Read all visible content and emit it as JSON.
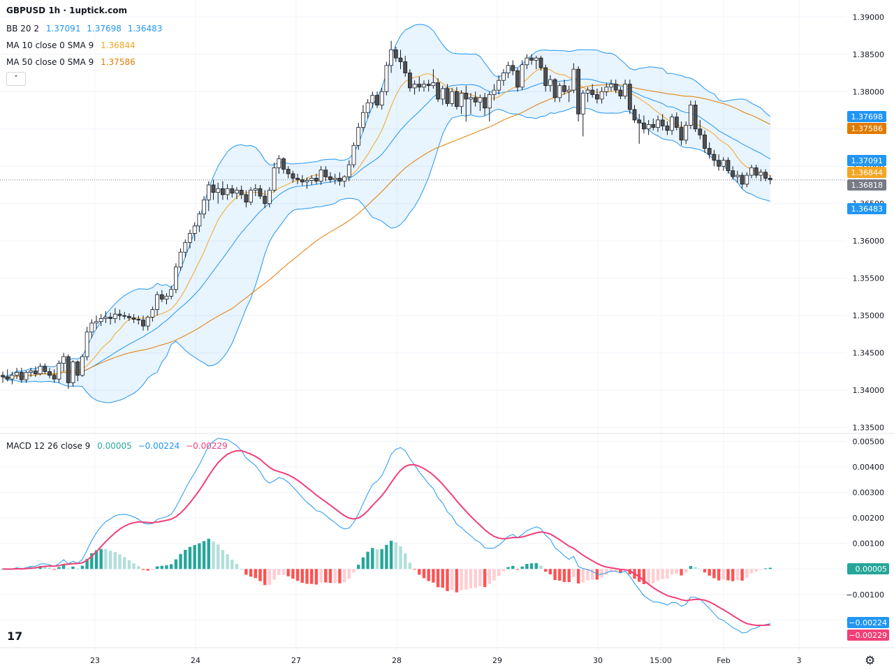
{
  "title": "GBPUSD 1h · 1uptick.com",
  "legend": {
    "bb": {
      "name": "BB 20 2",
      "values": [
        "1.37091",
        "1.37698",
        "1.36483"
      ],
      "color": "#2196f3"
    },
    "ma10": {
      "name": "MA 10 close 0 SMA 9",
      "value": "1.36844",
      "color": "#f5a623"
    },
    "ma50": {
      "name": "MA 50 close 0 SMA 9",
      "value": "1.37586",
      "color": "#e07b00"
    },
    "macd": {
      "name": "MACD 12 26 close 9",
      "values": [
        "0.00005",
        "−0.00224",
        "−0.00229"
      ],
      "colors": [
        "#26a69a",
        "#2196f3",
        "#f23f77"
      ]
    }
  },
  "collapse_icon": "chevron-up-icon",
  "logo_text": "17",
  "settings_icon": "gear-icon",
  "chart_data": {
    "type": "candlestick",
    "symbol": "GBPUSD",
    "interval": "1h",
    "price_axis": {
      "ticks": [
        "1.33500",
        "1.34000",
        "1.34500",
        "1.35000",
        "1.35500",
        "1.36000",
        "1.36500",
        "1.37000",
        "1.37500",
        "1.38000",
        "1.38500",
        "1.39000"
      ],
      "range": [
        1.3345,
        1.3904
      ]
    },
    "x_axis": {
      "ticks": [
        "23",
        "24",
        "27",
        "28",
        "29",
        "30",
        "15:00",
        "Feb",
        "3"
      ]
    },
    "price_labels": [
      {
        "text": "1.37698",
        "value": 1.37698,
        "color": "#2196f3"
      },
      {
        "text": "1.37586",
        "value": 1.37586,
        "color": "#e07b00"
      },
      {
        "text": "1.37091",
        "value": 1.37091,
        "color": "#2196f3"
      },
      {
        "text": "1.36844",
        "value": 1.36844,
        "color": "#f5a623"
      },
      {
        "text": "1.36818",
        "value": 1.36818,
        "color": "#787b86"
      },
      {
        "text": "1.36483",
        "value": 1.36483,
        "color": "#2196f3"
      }
    ],
    "last_price": 1.36818,
    "candles": [
      [
        1.342,
        1.3425,
        1.341,
        1.3418
      ],
      [
        1.3418,
        1.3428,
        1.3412,
        1.3415
      ],
      [
        1.3415,
        1.3425,
        1.3408,
        1.342
      ],
      [
        1.342,
        1.343,
        1.3415,
        1.3424
      ],
      [
        1.3424,
        1.343,
        1.341,
        1.3414
      ],
      [
        1.3414,
        1.3426,
        1.341,
        1.3424
      ],
      [
        1.3424,
        1.343,
        1.3418,
        1.3426
      ],
      [
        1.3426,
        1.3432,
        1.3418,
        1.3422
      ],
      [
        1.3422,
        1.3436,
        1.342,
        1.3432
      ],
      [
        1.3432,
        1.3436,
        1.3422,
        1.3425
      ],
      [
        1.3425,
        1.343,
        1.3416,
        1.342
      ],
      [
        1.342,
        1.3428,
        1.341,
        1.3415
      ],
      [
        1.3415,
        1.344,
        1.341,
        1.3436
      ],
      [
        1.3436,
        1.345,
        1.3425,
        1.3445
      ],
      [
        1.3445,
        1.3448,
        1.3402,
        1.341
      ],
      [
        1.341,
        1.344,
        1.3405,
        1.3438
      ],
      [
        1.3438,
        1.344,
        1.3412,
        1.342
      ],
      [
        1.342,
        1.3448,
        1.3418,
        1.3445
      ],
      [
        1.3445,
        1.3485,
        1.344,
        1.3478
      ],
      [
        1.3478,
        1.3495,
        1.347,
        1.349
      ],
      [
        1.349,
        1.35,
        1.3482,
        1.3492
      ],
      [
        1.3492,
        1.3502,
        1.3486,
        1.3496
      ],
      [
        1.3496,
        1.3506,
        1.349,
        1.3498
      ],
      [
        1.3498,
        1.3504,
        1.3488,
        1.3496
      ],
      [
        1.3496,
        1.351,
        1.349,
        1.3502
      ],
      [
        1.3502,
        1.3508,
        1.3494,
        1.35
      ],
      [
        1.35,
        1.3505,
        1.3495,
        1.3499
      ],
      [
        1.3499,
        1.3503,
        1.3493,
        1.3497
      ],
      [
        1.3497,
        1.3502,
        1.349,
        1.3495
      ],
      [
        1.3495,
        1.35,
        1.3488,
        1.3494
      ],
      [
        1.3494,
        1.35,
        1.348,
        1.3486
      ],
      [
        1.3486,
        1.35,
        1.348,
        1.3498
      ],
      [
        1.3498,
        1.3512,
        1.3492,
        1.3508
      ],
      [
        1.3508,
        1.3532,
        1.35,
        1.3528
      ],
      [
        1.3528,
        1.3534,
        1.3518,
        1.3522
      ],
      [
        1.3522,
        1.353,
        1.3515,
        1.3526
      ],
      [
        1.3526,
        1.354,
        1.3522,
        1.3535
      ],
      [
        1.3535,
        1.357,
        1.353,
        1.3565
      ],
      [
        1.3565,
        1.359,
        1.356,
        1.3585
      ],
      [
        1.3585,
        1.3602,
        1.3578,
        1.3598
      ],
      [
        1.3598,
        1.3615,
        1.359,
        1.361
      ],
      [
        1.361,
        1.3625,
        1.36,
        1.362
      ],
      [
        1.362,
        1.364,
        1.3612,
        1.3636
      ],
      [
        1.3636,
        1.366,
        1.363,
        1.3655
      ],
      [
        1.3655,
        1.368,
        1.364,
        1.3675
      ],
      [
        1.3675,
        1.3682,
        1.3655,
        1.3665
      ],
      [
        1.3665,
        1.3678,
        1.365,
        1.367
      ],
      [
        1.367,
        1.368,
        1.3655,
        1.3662
      ],
      [
        1.3662,
        1.3676,
        1.3655,
        1.367
      ],
      [
        1.367,
        1.3675,
        1.3658,
        1.3664
      ],
      [
        1.3664,
        1.3672,
        1.3656,
        1.3668
      ],
      [
        1.3668,
        1.3674,
        1.3656,
        1.3662
      ],
      [
        1.3662,
        1.3668,
        1.3645,
        1.3652
      ],
      [
        1.3652,
        1.3672,
        1.3648,
        1.3668
      ],
      [
        1.3668,
        1.3676,
        1.366,
        1.367
      ],
      [
        1.367,
        1.3675,
        1.3656,
        1.366
      ],
      [
        1.366,
        1.3668,
        1.3644,
        1.365
      ],
      [
        1.365,
        1.3672,
        1.3645,
        1.3668
      ],
      [
        1.3668,
        1.3705,
        1.3665,
        1.3698
      ],
      [
        1.3698,
        1.3715,
        1.369,
        1.371
      ],
      [
        1.371,
        1.3712,
        1.369,
        1.3696
      ],
      [
        1.3696,
        1.37,
        1.3684,
        1.369
      ],
      [
        1.369,
        1.3694,
        1.3678,
        1.3684
      ],
      [
        1.3684,
        1.369,
        1.3676,
        1.3682
      ],
      [
        1.3682,
        1.3688,
        1.3674,
        1.3679
      ],
      [
        1.3679,
        1.3685,
        1.367,
        1.3681
      ],
      [
        1.3681,
        1.3688,
        1.3675,
        1.3684
      ],
      [
        1.3684,
        1.369,
        1.3676,
        1.368
      ],
      [
        1.368,
        1.37,
        1.3675,
        1.3695
      ],
      [
        1.3695,
        1.37,
        1.368,
        1.3686
      ],
      [
        1.3686,
        1.3692,
        1.3678,
        1.3682
      ],
      [
        1.3682,
        1.369,
        1.3676,
        1.3684
      ],
      [
        1.3684,
        1.3692,
        1.3674,
        1.368
      ],
      [
        1.368,
        1.3688,
        1.3672,
        1.3686
      ],
      [
        1.3686,
        1.3708,
        1.368,
        1.3702
      ],
      [
        1.3702,
        1.3732,
        1.3698,
        1.3728
      ],
      [
        1.3728,
        1.3758,
        1.3722,
        1.3752
      ],
      [
        1.3752,
        1.3782,
        1.3746,
        1.3772
      ],
      [
        1.3772,
        1.379,
        1.3764,
        1.3785
      ],
      [
        1.3785,
        1.38,
        1.3778,
        1.3795
      ],
      [
        1.3795,
        1.38,
        1.3778,
        1.3782
      ],
      [
        1.3782,
        1.3805,
        1.3776,
        1.38
      ],
      [
        1.38,
        1.384,
        1.3795,
        1.3835
      ],
      [
        1.3835,
        1.3868,
        1.3825,
        1.3856
      ],
      [
        1.3856,
        1.386,
        1.384,
        1.3845
      ],
      [
        1.3845,
        1.3856,
        1.383,
        1.384
      ],
      [
        1.384,
        1.3848,
        1.382,
        1.3825
      ],
      [
        1.3825,
        1.383,
        1.38,
        1.3805
      ],
      [
        1.3805,
        1.3815,
        1.3796,
        1.381
      ],
      [
        1.381,
        1.382,
        1.38,
        1.3806
      ],
      [
        1.3806,
        1.3815,
        1.38,
        1.381
      ],
      [
        1.381,
        1.3816,
        1.38,
        1.3808
      ],
      [
        1.3808,
        1.383,
        1.3804,
        1.3812
      ],
      [
        1.3812,
        1.3818,
        1.3786,
        1.379
      ],
      [
        1.379,
        1.3808,
        1.3782,
        1.3804
      ],
      [
        1.3804,
        1.381,
        1.378,
        1.3784
      ],
      [
        1.3784,
        1.3805,
        1.378,
        1.38
      ],
      [
        1.38,
        1.3806,
        1.3776,
        1.378
      ],
      [
        1.378,
        1.3802,
        1.377,
        1.3798
      ],
      [
        1.3798,
        1.3808,
        1.376,
        1.379
      ],
      [
        1.379,
        1.3798,
        1.377,
        1.3792
      ],
      [
        1.3792,
        1.38,
        1.378,
        1.3786
      ],
      [
        1.3786,
        1.3796,
        1.3774,
        1.3792
      ],
      [
        1.3792,
        1.3798,
        1.3768,
        1.3778
      ],
      [
        1.3778,
        1.38,
        1.376,
        1.3796
      ],
      [
        1.3796,
        1.381,
        1.3788,
        1.3802
      ],
      [
        1.3802,
        1.3822,
        1.3796,
        1.3815
      ],
      [
        1.3815,
        1.383,
        1.3808,
        1.3825
      ],
      [
        1.3825,
        1.384,
        1.3818,
        1.3835
      ],
      [
        1.3835,
        1.3842,
        1.3822,
        1.3828
      ],
      [
        1.3828,
        1.3832,
        1.38,
        1.3806
      ],
      [
        1.3806,
        1.3842,
        1.3802,
        1.3836
      ],
      [
        1.3836,
        1.385,
        1.383,
        1.3845
      ],
      [
        1.3845,
        1.385,
        1.3836,
        1.3842
      ],
      [
        1.3842,
        1.3848,
        1.383,
        1.3845
      ],
      [
        1.3845,
        1.3848,
        1.3828,
        1.3832
      ],
      [
        1.3832,
        1.3836,
        1.38,
        1.3808
      ],
      [
        1.3808,
        1.3822,
        1.38,
        1.3816
      ],
      [
        1.3816,
        1.3818,
        1.3786,
        1.3792
      ],
      [
        1.3792,
        1.3812,
        1.3786,
        1.3808
      ],
      [
        1.3808,
        1.3816,
        1.3796,
        1.38
      ],
      [
        1.38,
        1.3808,
        1.3786,
        1.3802
      ],
      [
        1.3802,
        1.3838,
        1.3798,
        1.383
      ],
      [
        1.383,
        1.3834,
        1.376,
        1.377
      ],
      [
        1.377,
        1.3802,
        1.374,
        1.3798
      ],
      [
        1.3798,
        1.3806,
        1.3786,
        1.3802
      ],
      [
        1.3802,
        1.381,
        1.3792,
        1.3796
      ],
      [
        1.3796,
        1.3804,
        1.3784,
        1.379
      ],
      [
        1.379,
        1.3806,
        1.3784,
        1.38
      ],
      [
        1.38,
        1.3812,
        1.3794,
        1.3806
      ],
      [
        1.3806,
        1.3816,
        1.38,
        1.381
      ],
      [
        1.381,
        1.3816,
        1.3798,
        1.3802
      ],
      [
        1.3802,
        1.3806,
        1.379,
        1.3794
      ],
      [
        1.3794,
        1.3816,
        1.379,
        1.381
      ],
      [
        1.381,
        1.3816,
        1.377,
        1.3776
      ],
      [
        1.3776,
        1.3782,
        1.3758,
        1.3762
      ],
      [
        1.3762,
        1.377,
        1.373,
        1.3758
      ],
      [
        1.3758,
        1.3768,
        1.3744,
        1.375
      ],
      [
        1.375,
        1.3762,
        1.3742,
        1.3756
      ],
      [
        1.3756,
        1.3764,
        1.3748,
        1.3752
      ],
      [
        1.3752,
        1.3768,
        1.3746,
        1.3762
      ],
      [
        1.3762,
        1.377,
        1.3748,
        1.3754
      ],
      [
        1.3754,
        1.376,
        1.3742,
        1.3748
      ],
      [
        1.3748,
        1.377,
        1.3742,
        1.3766
      ],
      [
        1.3766,
        1.3772,
        1.3748,
        1.3752
      ],
      [
        1.3752,
        1.376,
        1.3728,
        1.3735
      ],
      [
        1.3735,
        1.376,
        1.373,
        1.3755
      ],
      [
        1.3755,
        1.3788,
        1.375,
        1.3782
      ],
      [
        1.3782,
        1.3788,
        1.3746,
        1.375
      ],
      [
        1.375,
        1.3762,
        1.3736,
        1.3742
      ],
      [
        1.3742,
        1.3748,
        1.3718,
        1.3724
      ],
      [
        1.3724,
        1.3732,
        1.371,
        1.3716
      ],
      [
        1.3716,
        1.3722,
        1.37,
        1.3708
      ],
      [
        1.3708,
        1.3716,
        1.3694,
        1.37
      ],
      [
        1.37,
        1.3712,
        1.3694,
        1.3708
      ],
      [
        1.3708,
        1.3712,
        1.369,
        1.3694
      ],
      [
        1.3694,
        1.37,
        1.3682,
        1.3686
      ],
      [
        1.3686,
        1.3694,
        1.3678,
        1.3688
      ],
      [
        1.3688,
        1.3692,
        1.367,
        1.3676
      ],
      [
        1.3676,
        1.3692,
        1.3672,
        1.3688
      ],
      [
        1.3688,
        1.3702,
        1.3684,
        1.3698
      ],
      [
        1.3698,
        1.3702,
        1.3684,
        1.3688
      ],
      [
        1.3688,
        1.3696,
        1.368,
        1.3692
      ],
      [
        1.3692,
        1.3696,
        1.368,
        1.3684
      ],
      [
        1.3684,
        1.3688,
        1.3676,
        1.3682
      ]
    ],
    "macd": {
      "ylim": [
        -0.003,
        0.0052
      ],
      "ticks": [
        "0.00500",
        "0.00400",
        "0.00300",
        "0.00200",
        "0.00100",
        "0.00000",
        "−0.00100",
        "−0.00200"
      ]
    }
  }
}
